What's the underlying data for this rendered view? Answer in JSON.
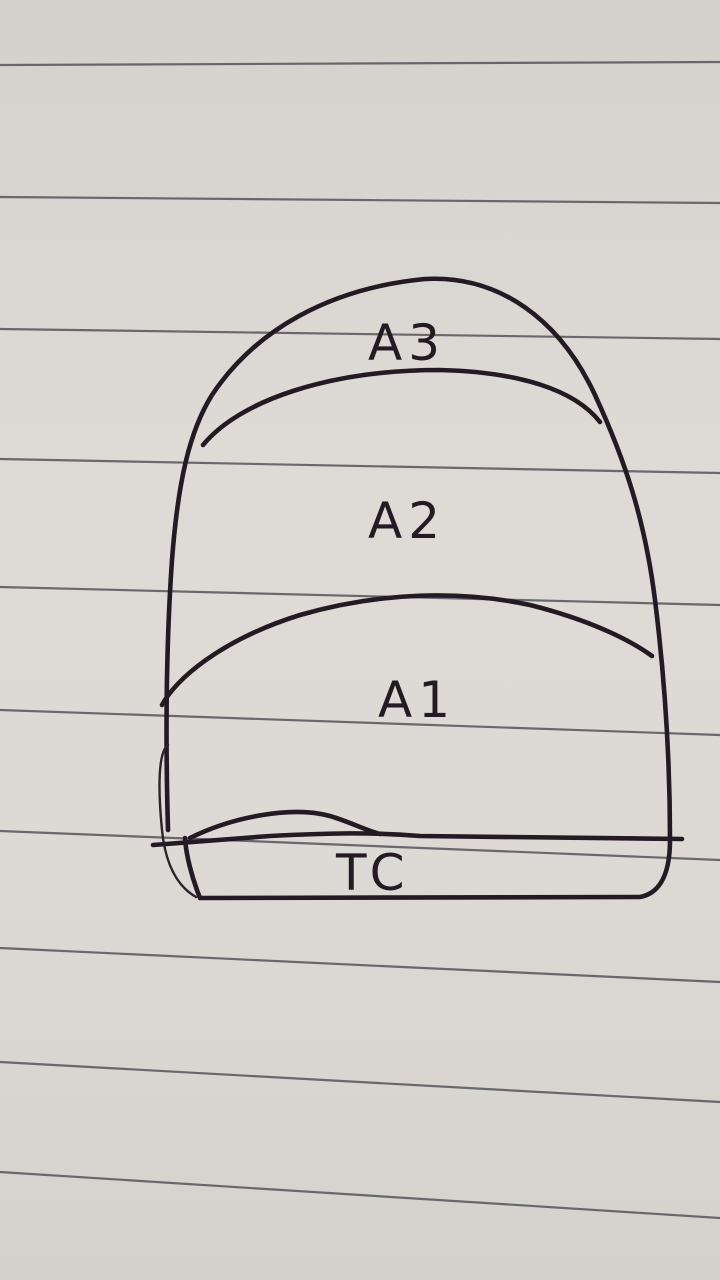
{
  "diagram": {
    "regions": [
      {
        "id": "A3",
        "label": "A3"
      },
      {
        "id": "A2",
        "label": "A2"
      },
      {
        "id": "A1",
        "label": "A1"
      },
      {
        "id": "TC",
        "label": "TC"
      }
    ]
  },
  "colors": {
    "paper": "#dcd9d4",
    "rule_line": "#55535a",
    "ink": "#231a24"
  }
}
